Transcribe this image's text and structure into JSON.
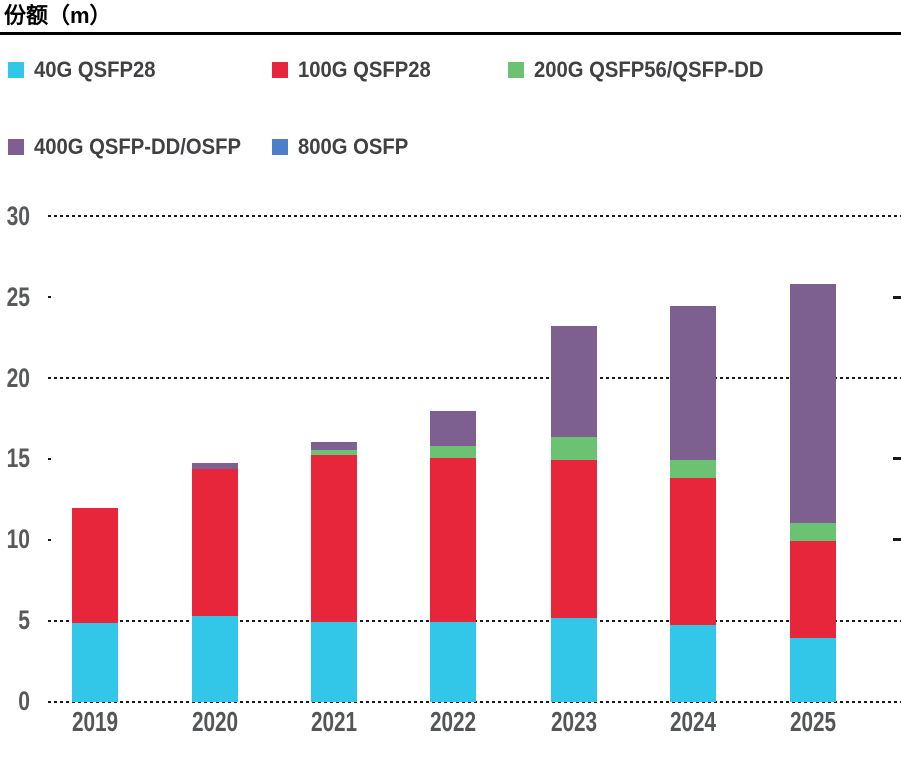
{
  "title": {
    "text": "份额（m）"
  },
  "legend": {
    "items": [
      {
        "label": "40G QSFP28",
        "color": "#32C7E9"
      },
      {
        "label": "100G QSFP28",
        "color": "#E7263C"
      },
      {
        "label": "200G QSFP56/QSFP-DD",
        "color": "#6BC272"
      },
      {
        "label": "400G QSFP-DD/OSFP",
        "color": "#7D6090"
      },
      {
        "label": "800G OSFP",
        "color": "#4D7EC8"
      }
    ]
  },
  "chart_data": {
    "type": "bar",
    "stacked": true,
    "title": "份额（m）",
    "categories": [
      "2019",
      "2020",
      "2021",
      "2022",
      "2023",
      "2024",
      "2025"
    ],
    "series": [
      {
        "name": "40G QSFP28",
        "color": "#32C7E9",
        "values": [
          4.9,
          5.35,
          5.0,
          5.0,
          5.25,
          4.8,
          4.0
        ]
      },
      {
        "name": "100G QSFP28",
        "color": "#E7263C",
        "values": [
          7.15,
          9.1,
          10.3,
          10.1,
          9.75,
          9.1,
          6.0
        ]
      },
      {
        "name": "200G QSFP56/QSFP-DD",
        "color": "#6BC272",
        "values": [
          0,
          0,
          0.3,
          0.75,
          1.4,
          1.1,
          1.1
        ]
      },
      {
        "name": "400G QSFP-DD/OSFP",
        "color": "#7D6090",
        "values": [
          0,
          0.35,
          0.5,
          2.15,
          6.9,
          9.5,
          14.8
        ]
      },
      {
        "name": "800G OSFP",
        "color": "#4D7EC8",
        "values": [
          0,
          0,
          0,
          0,
          0,
          0,
          0
        ]
      }
    ],
    "ylabel": "份额（m）",
    "xlabel": "",
    "ylim": [
      0,
      30
    ],
    "yticks": [
      0,
      5,
      10,
      15,
      20,
      25,
      30
    ],
    "gridline_full_at": [
      0,
      5,
      20,
      30
    ],
    "gridline_tick_at": [
      10,
      15,
      25
    ],
    "grid_style": "dashed",
    "legend_position": "top"
  }
}
